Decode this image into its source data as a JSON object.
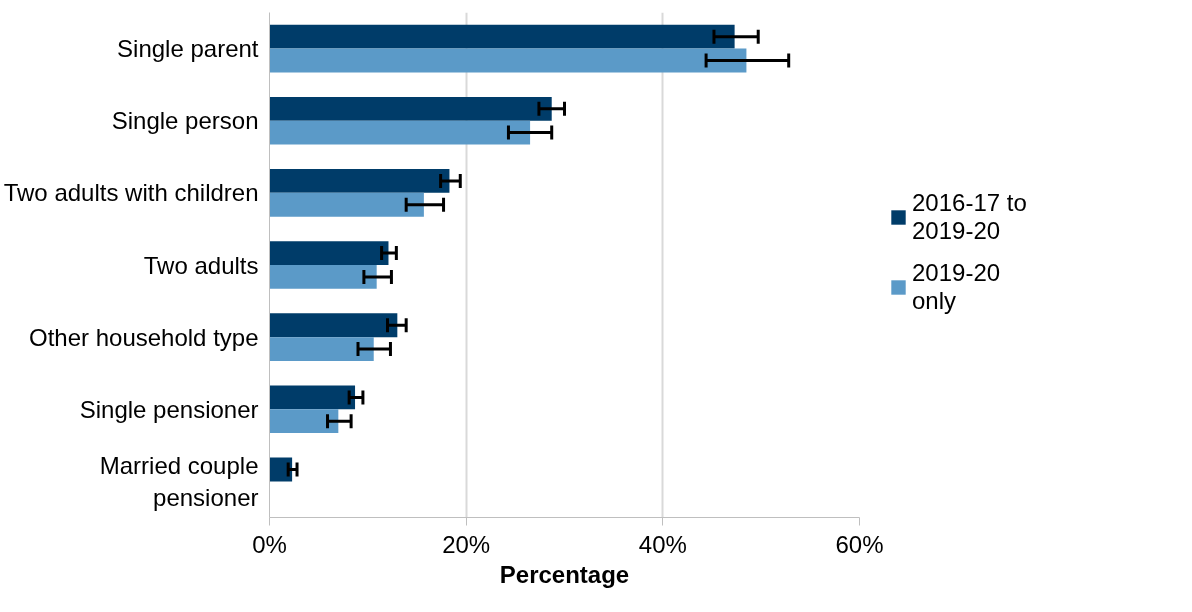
{
  "chart_data": {
    "type": "bar",
    "orientation": "horizontal",
    "xlabel": "Percentage",
    "categories": [
      "Single parent",
      "Single person",
      "Two adults with children",
      "Two adults",
      "Other household type",
      "Single pensioner",
      "Married couple\npensioner"
    ],
    "series": [
      {
        "name": "2016-17 to 2019-20",
        "color": "#003c69",
        "values": [
          47.3,
          28.7,
          18.3,
          12.1,
          13.0,
          8.7,
          2.3
        ],
        "errors": [
          [
            45.2,
            49.7
          ],
          [
            27.4,
            30.0
          ],
          [
            17.4,
            19.4
          ],
          [
            11.4,
            12.9
          ],
          [
            12.0,
            13.9
          ],
          [
            8.1,
            9.5
          ],
          [
            1.9,
            2.8
          ]
        ]
      },
      {
        "name": "2019-20 only",
        "color": "#5b9ac8",
        "values": [
          48.5,
          26.5,
          15.7,
          10.9,
          10.6,
          7.0,
          null
        ],
        "errors": [
          [
            44.4,
            52.8
          ],
          [
            24.3,
            28.7
          ],
          [
            13.9,
            17.7
          ],
          [
            9.6,
            12.4
          ],
          [
            9.0,
            12.3
          ],
          [
            5.9,
            8.3
          ],
          null
        ]
      }
    ],
    "xlim": [
      0,
      60
    ],
    "xticks": [
      {
        "value": 0,
        "label": "0%"
      },
      {
        "value": 20,
        "label": "20%"
      },
      {
        "value": 40,
        "label": "40%"
      },
      {
        "value": 60,
        "label": "60%"
      }
    ],
    "grid": "x",
    "legend": "right"
  }
}
